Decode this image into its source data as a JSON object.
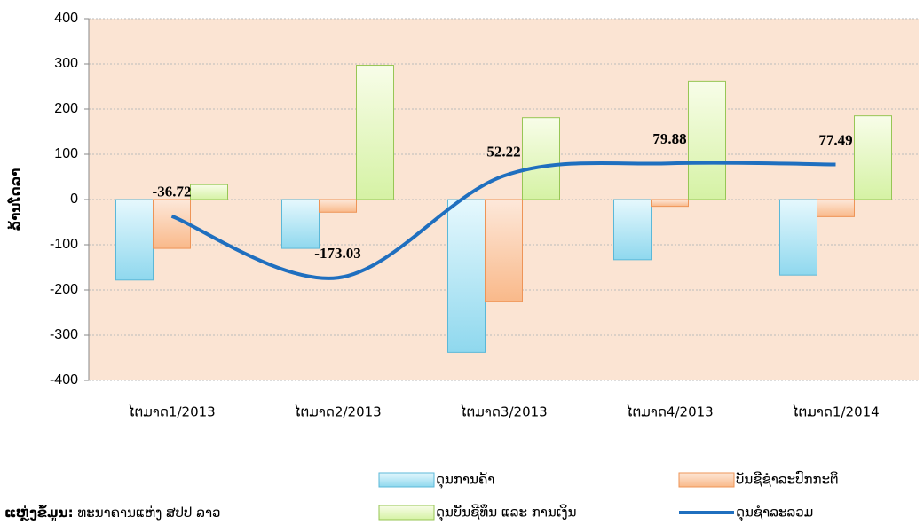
{
  "chart_data": {
    "type": "bar",
    "y_label": "ລ້ານໂດລາ",
    "categories": [
      "ໄຕມາດ1/2013",
      "ໄຕມາດ2/2013",
      "ໄຕມາດ3/2013",
      "ໄຕມາດ4/2013",
      "ໄຕມາດ1/2014"
    ],
    "series": [
      {
        "name": "ດຸນການຄ້າ",
        "type": "bar",
        "color": "#8fd8ee",
        "values": [
          -178,
          -108,
          -338,
          -133,
          -167
        ]
      },
      {
        "name": "ບັນຊີຊຳລະປົກກະຕິ",
        "type": "bar",
        "color": "#f9b98a",
        "values": [
          -108,
          -28,
          -225,
          -15,
          -38
        ]
      },
      {
        "name": "ດຸນບັນຊີທຶນ ແລະ ການເງິນ",
        "type": "bar",
        "color": "#d5f2a4",
        "values": [
          33,
          297,
          181,
          262,
          185
        ]
      },
      {
        "name": "ດຸນຊຳລະລວມ",
        "type": "line",
        "color": "#1f6fbf",
        "values": [
          -36.72,
          -173.03,
          52.22,
          79.88,
          77.49
        ]
      }
    ],
    "ylim": [
      -400,
      400
    ],
    "yticks": [
      -400,
      -300,
      -200,
      -100,
      0,
      100,
      200,
      300,
      400
    ],
    "grid": true,
    "source_label": "ແຫຼ່ງຂໍ້ມູນ:",
    "source": "ທະນາຄານແຫ່ງ ສປປ ລາວ"
  }
}
